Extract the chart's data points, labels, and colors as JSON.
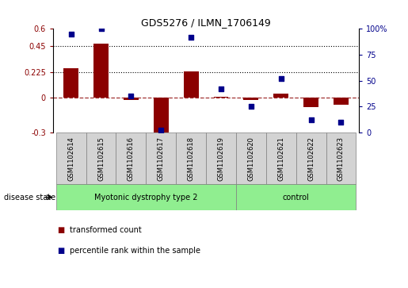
{
  "title": "GDS5276 / ILMN_1706149",
  "samples": [
    "GSM1102614",
    "GSM1102615",
    "GSM1102616",
    "GSM1102617",
    "GSM1102618",
    "GSM1102619",
    "GSM1102620",
    "GSM1102621",
    "GSM1102622",
    "GSM1102623"
  ],
  "red_values": [
    0.255,
    0.468,
    -0.018,
    -0.32,
    0.228,
    0.01,
    -0.018,
    0.04,
    -0.08,
    -0.06
  ],
  "blue_values": [
    95,
    100,
    35,
    2,
    92,
    42,
    25,
    52,
    12,
    10
  ],
  "ylim_left": [
    -0.3,
    0.6
  ],
  "ylim_right": [
    0,
    100
  ],
  "yticks_left": [
    -0.3,
    0,
    0.225,
    0.45,
    0.6
  ],
  "ytick_labels_left": [
    "-0.3",
    "0",
    "0.225",
    "0.45",
    "0.6"
  ],
  "yticks_right": [
    0,
    25,
    50,
    75,
    100
  ],
  "ytick_labels_right": [
    "0",
    "25",
    "50",
    "75",
    "100%"
  ],
  "hlines_dotted": [
    0.225,
    0.45
  ],
  "bar_color": "#8B0000",
  "dot_color": "#00008B",
  "bar_width": 0.5,
  "sample_bg_color": "#D3D3D3",
  "group1_label": "Myotonic dystrophy type 2",
  "group2_label": "control",
  "group_color": "#90EE90",
  "disease_state_label": "disease state",
  "legend_label_red": "transformed count",
  "legend_label_blue": "percentile rank within the sample"
}
